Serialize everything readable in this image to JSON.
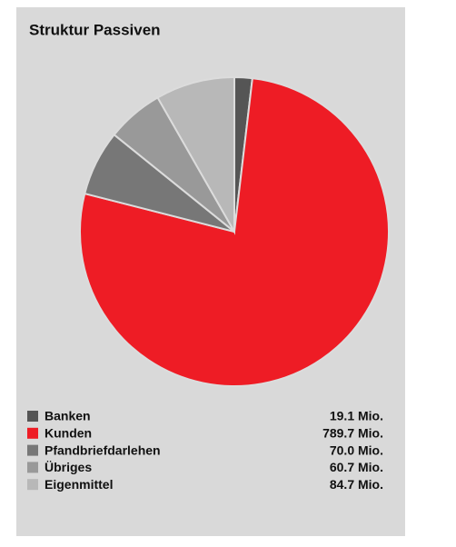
{
  "chart_data": {
    "type": "pie",
    "title": "Struktur Passiven",
    "categories": [
      "Banken",
      "Kunden",
      "Pfandbriefdarlehen",
      "Übriges",
      "Eigenmittel"
    ],
    "values": [
      19.1,
      789.7,
      70.0,
      60.7,
      84.7
    ],
    "value_labels": [
      "19.1 Mio.",
      "789.7 Mio.",
      "70.0 Mio.",
      "60.7 Mio.",
      "84.7 Mio."
    ],
    "colors": [
      "#555555",
      "#ee1c25",
      "#777777",
      "#999999",
      "#b8b8b8"
    ],
    "legend": "bottom"
  }
}
